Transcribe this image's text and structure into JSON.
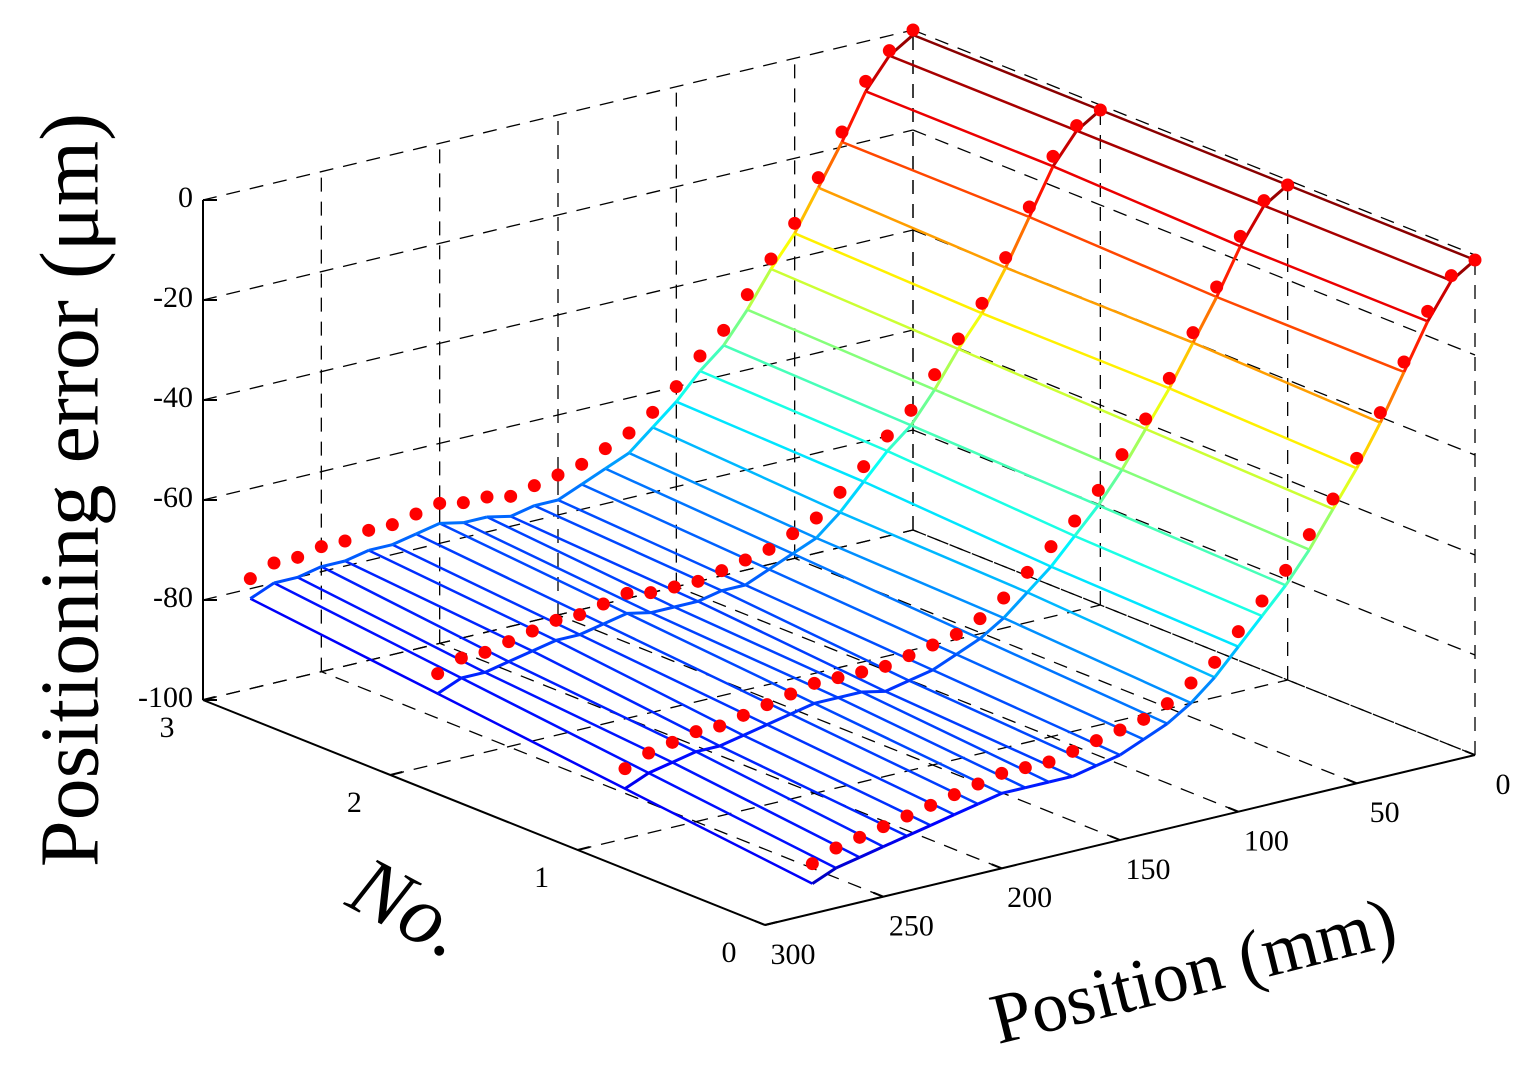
{
  "chart_data": {
    "type": "surface3d",
    "zlabel": "Positioning error (μm)",
    "ylabel": "No.",
    "xlabel": "Position (mm)",
    "xlim": [
      0,
      300
    ],
    "ylim": [
      0,
      3
    ],
    "zlim": [
      -100,
      0
    ],
    "xticks": [
      0,
      50,
      100,
      150,
      200,
      250,
      300
    ],
    "yticks": [
      0,
      1,
      2,
      3
    ],
    "zticks": [
      -100,
      -80,
      -60,
      -40,
      -20,
      0
    ],
    "grid": true,
    "colormap": "jet",
    "x": [
      0,
      10,
      20,
      30,
      40,
      50,
      60,
      70,
      80,
      90,
      100,
      110,
      120,
      130,
      140,
      150,
      160,
      170,
      180,
      190,
      200,
      210,
      220,
      230,
      240,
      250,
      260,
      270,
      280
    ],
    "surface": [
      {
        "y": 0,
        "values": [
          -1,
          -4,
          -11,
          -20,
          -29,
          -37,
          -44,
          -51,
          -57,
          -62,
          -67,
          -72,
          -76,
          -79,
          -81,
          -83,
          -84,
          -85,
          -85,
          -85,
          -85,
          -86,
          -87,
          -88,
          -89,
          -90,
          -91,
          -92,
          -94
        ]
      },
      {
        "y": 1,
        "values": [
          -1,
          -4,
          -11,
          -20,
          -28,
          -36,
          -43,
          -50,
          -56,
          -61,
          -66,
          -70,
          -74,
          -77,
          -79,
          -81,
          -82,
          -83,
          -82,
          -82,
          -82,
          -83,
          -84,
          -85,
          -86,
          -86,
          -87,
          -88,
          -90
        ]
      },
      {
        "y": 2,
        "values": [
          -1,
          -4,
          -10,
          -19,
          -28,
          -36,
          -42,
          -49,
          -55,
          -59,
          -64,
          -69,
          -73,
          -75,
          -77,
          -79,
          -79,
          -80,
          -80,
          -80,
          -79,
          -80,
          -81,
          -81,
          -82,
          -83,
          -84,
          -84,
          -86
        ]
      },
      {
        "y": 3,
        "values": [
          -1,
          -4,
          -10,
          -19,
          -27,
          -35,
          -41,
          -48,
          -54,
          -58,
          -63,
          -67,
          -71,
          -73,
          -75,
          -77,
          -77,
          -78,
          -77,
          -77,
          -76,
          -77,
          -78,
          -78,
          -79,
          -79,
          -80,
          -80,
          -82
        ]
      }
    ],
    "measured": {
      "color": "#ff0000",
      "series": [
        {
          "y": 0,
          "values": [
            -1,
            -3,
            -9,
            -18,
            -27,
            -35,
            -42,
            -48,
            -54,
            -59,
            -64,
            -69,
            -72,
            -75,
            -77,
            -78,
            -79,
            -80,
            -81,
            -81,
            -81,
            -82,
            -83,
            -84,
            -85,
            -86,
            -87,
            -88,
            -90
          ]
        },
        {
          "y": 1,
          "values": [
            -1,
            -3,
            -9,
            -18,
            -26,
            -34,
            -41,
            -47,
            -53,
            -58,
            -62,
            -66,
            -70,
            -73,
            -75,
            -76,
            -77,
            -78,
            -78,
            -78,
            -78,
            -79,
            -80,
            -81,
            -82,
            -82,
            -83,
            -84,
            -86
          ]
        },
        {
          "y": 2,
          "values": [
            -1,
            -3,
            -8,
            -17,
            -26,
            -34,
            -40,
            -46,
            -52,
            -56,
            -61,
            -65,
            -69,
            -71,
            -73,
            -74,
            -75,
            -76,
            -76,
            -76,
            -75,
            -76,
            -77,
            -77,
            -78,
            -79,
            -80,
            -80,
            -82
          ]
        },
        {
          "y": 3,
          "values": [
            0,
            -3,
            -8,
            -17,
            -25,
            -33,
            -39,
            -45,
            -51,
            -55,
            -60,
            -64,
            -67,
            -69,
            -71,
            -72,
            -73,
            -74,
            -73,
            -73,
            -72,
            -73,
            -74,
            -74,
            -75,
            -75,
            -76,
            -76,
            -78
          ]
        }
      ]
    }
  }
}
